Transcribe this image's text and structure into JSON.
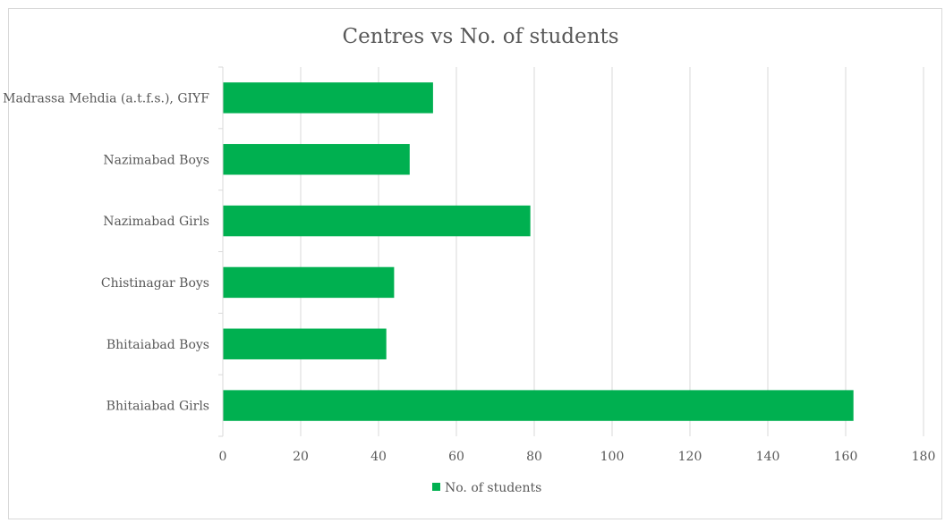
{
  "chart_data": {
    "type": "bar",
    "orientation": "horizontal",
    "title": "Centres vs No. of students",
    "categories": [
      "Madrassa Mehdia (a.t.f.s.), GIYF",
      "Nazimabad Boys",
      "Nazimabad Girls",
      "Chistinagar Boys",
      "Bhitaiabad Boys",
      "Bhitaiabad Girls"
    ],
    "series": [
      {
        "name": "No. of students",
        "values": [
          54,
          48,
          79,
          44,
          42,
          162
        ],
        "color": "#00b050"
      }
    ],
    "xlim": [
      0,
      180
    ],
    "xticks": [
      "0",
      "20",
      "40",
      "60",
      "80",
      "100",
      "120",
      "140",
      "160",
      "180"
    ],
    "xlabel": "",
    "ylabel": "",
    "grid": true,
    "legend": "bottom"
  }
}
